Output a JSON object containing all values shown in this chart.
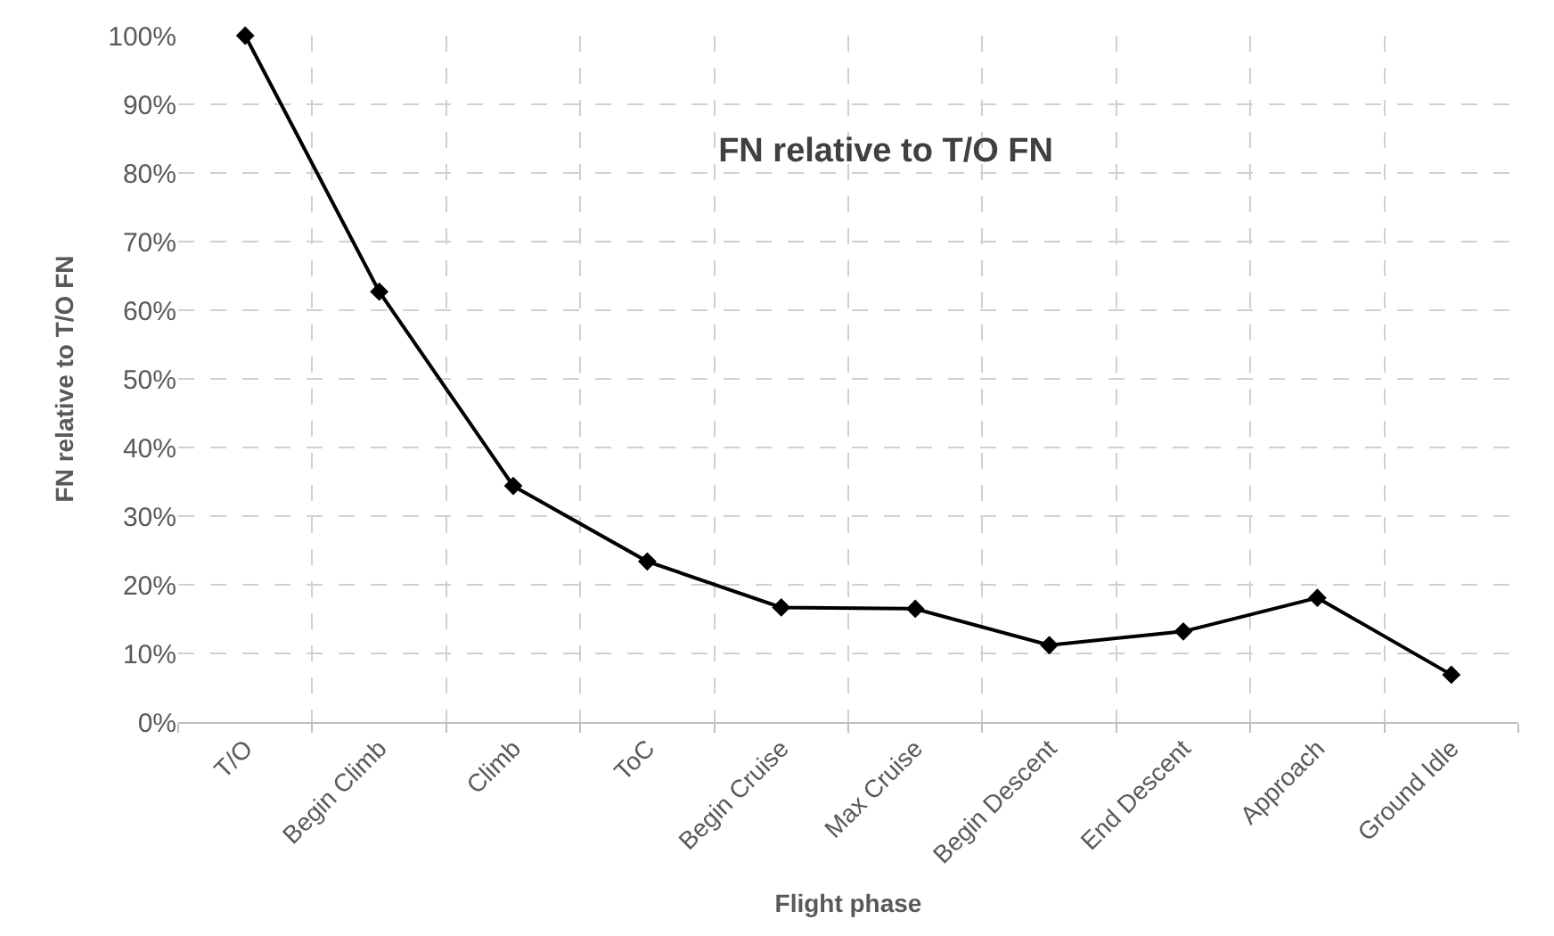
{
  "chart_data": {
    "type": "line",
    "title": "FN relative to T/O FN",
    "xlabel": "Flight phase",
    "ylabel": "FN relative to T/O FN",
    "categories": [
      "T/O",
      "Begin Climb",
      "Climb",
      "ToC",
      "Begin Cruise",
      "Max Cruise",
      "Begin Descent",
      "End Descent",
      "Approach",
      "Ground Idle"
    ],
    "series": [
      {
        "color": "#000000",
        "values": [
          100,
          62.7,
          34.4,
          23.4,
          16.7,
          16.5,
          11.2,
          13.2,
          18.1,
          6.9
        ]
      }
    ],
    "ylim": [
      0,
      100
    ],
    "yticks": [
      {
        "value": 0,
        "label": "0%"
      },
      {
        "value": 10,
        "label": "10%"
      },
      {
        "value": 20,
        "label": "20%"
      },
      {
        "value": 30,
        "label": "30%"
      },
      {
        "value": 40,
        "label": "40%"
      },
      {
        "value": 50,
        "label": "50%"
      },
      {
        "value": 60,
        "label": "60%"
      },
      {
        "value": 70,
        "label": "70%"
      },
      {
        "value": 80,
        "label": "80%"
      },
      {
        "value": 90,
        "label": "90%"
      },
      {
        "value": 100,
        "label": "100%"
      }
    ],
    "grid": true,
    "marker": "diamond",
    "line_style": "solid"
  }
}
